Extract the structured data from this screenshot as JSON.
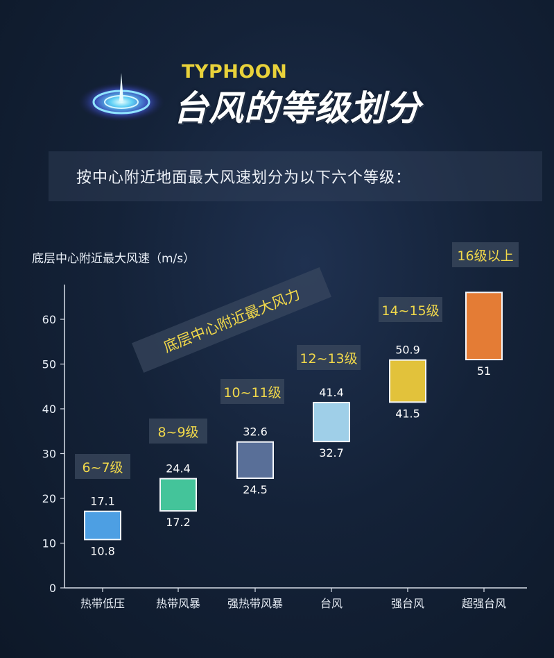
{
  "header": {
    "en_title": "TYPHOON",
    "cn_title": "台风的等级划分",
    "subtitle": "按中心附近地面最大风速划分为以下六个等级："
  },
  "annotation": "底层中心附近最大风力",
  "colors": {
    "label_text": "#f2d94a",
    "axis": "#d8dee8"
  },
  "chart_data": {
    "type": "bar",
    "ylabel": "底层中心附近最大风速（m/s）",
    "ylim": [
      0,
      65
    ],
    "yticks": [
      0,
      10,
      20,
      30,
      40,
      50,
      60
    ],
    "grid": false,
    "categories": [
      "热带低压",
      "热带风暴",
      "强热带风暴",
      "台风",
      "强台风",
      "超强台风"
    ],
    "series": [
      {
        "low": [
          10.8,
          17.2,
          24.5,
          32.7,
          41.5,
          51
        ],
        "high": [
          17.1,
          24.4,
          32.6,
          41.4,
          50.9,
          66
        ],
        "low_labels": [
          "10.8",
          "17.2",
          "24.5",
          "32.7",
          "41.5",
          "51"
        ],
        "high_labels": [
          "17.1",
          "24.4",
          "32.6",
          "41.4",
          "50.9",
          ""
        ],
        "colors": [
          "#4d9fe3",
          "#44c49a",
          "#596f98",
          "#9fcfe8",
          "#e2c23b",
          "#e47c35"
        ]
      }
    ],
    "level_labels": [
      "6~7级",
      "8~9级",
      "10~11级",
      "12~13级",
      "14~15级",
      "16级以上"
    ]
  }
}
